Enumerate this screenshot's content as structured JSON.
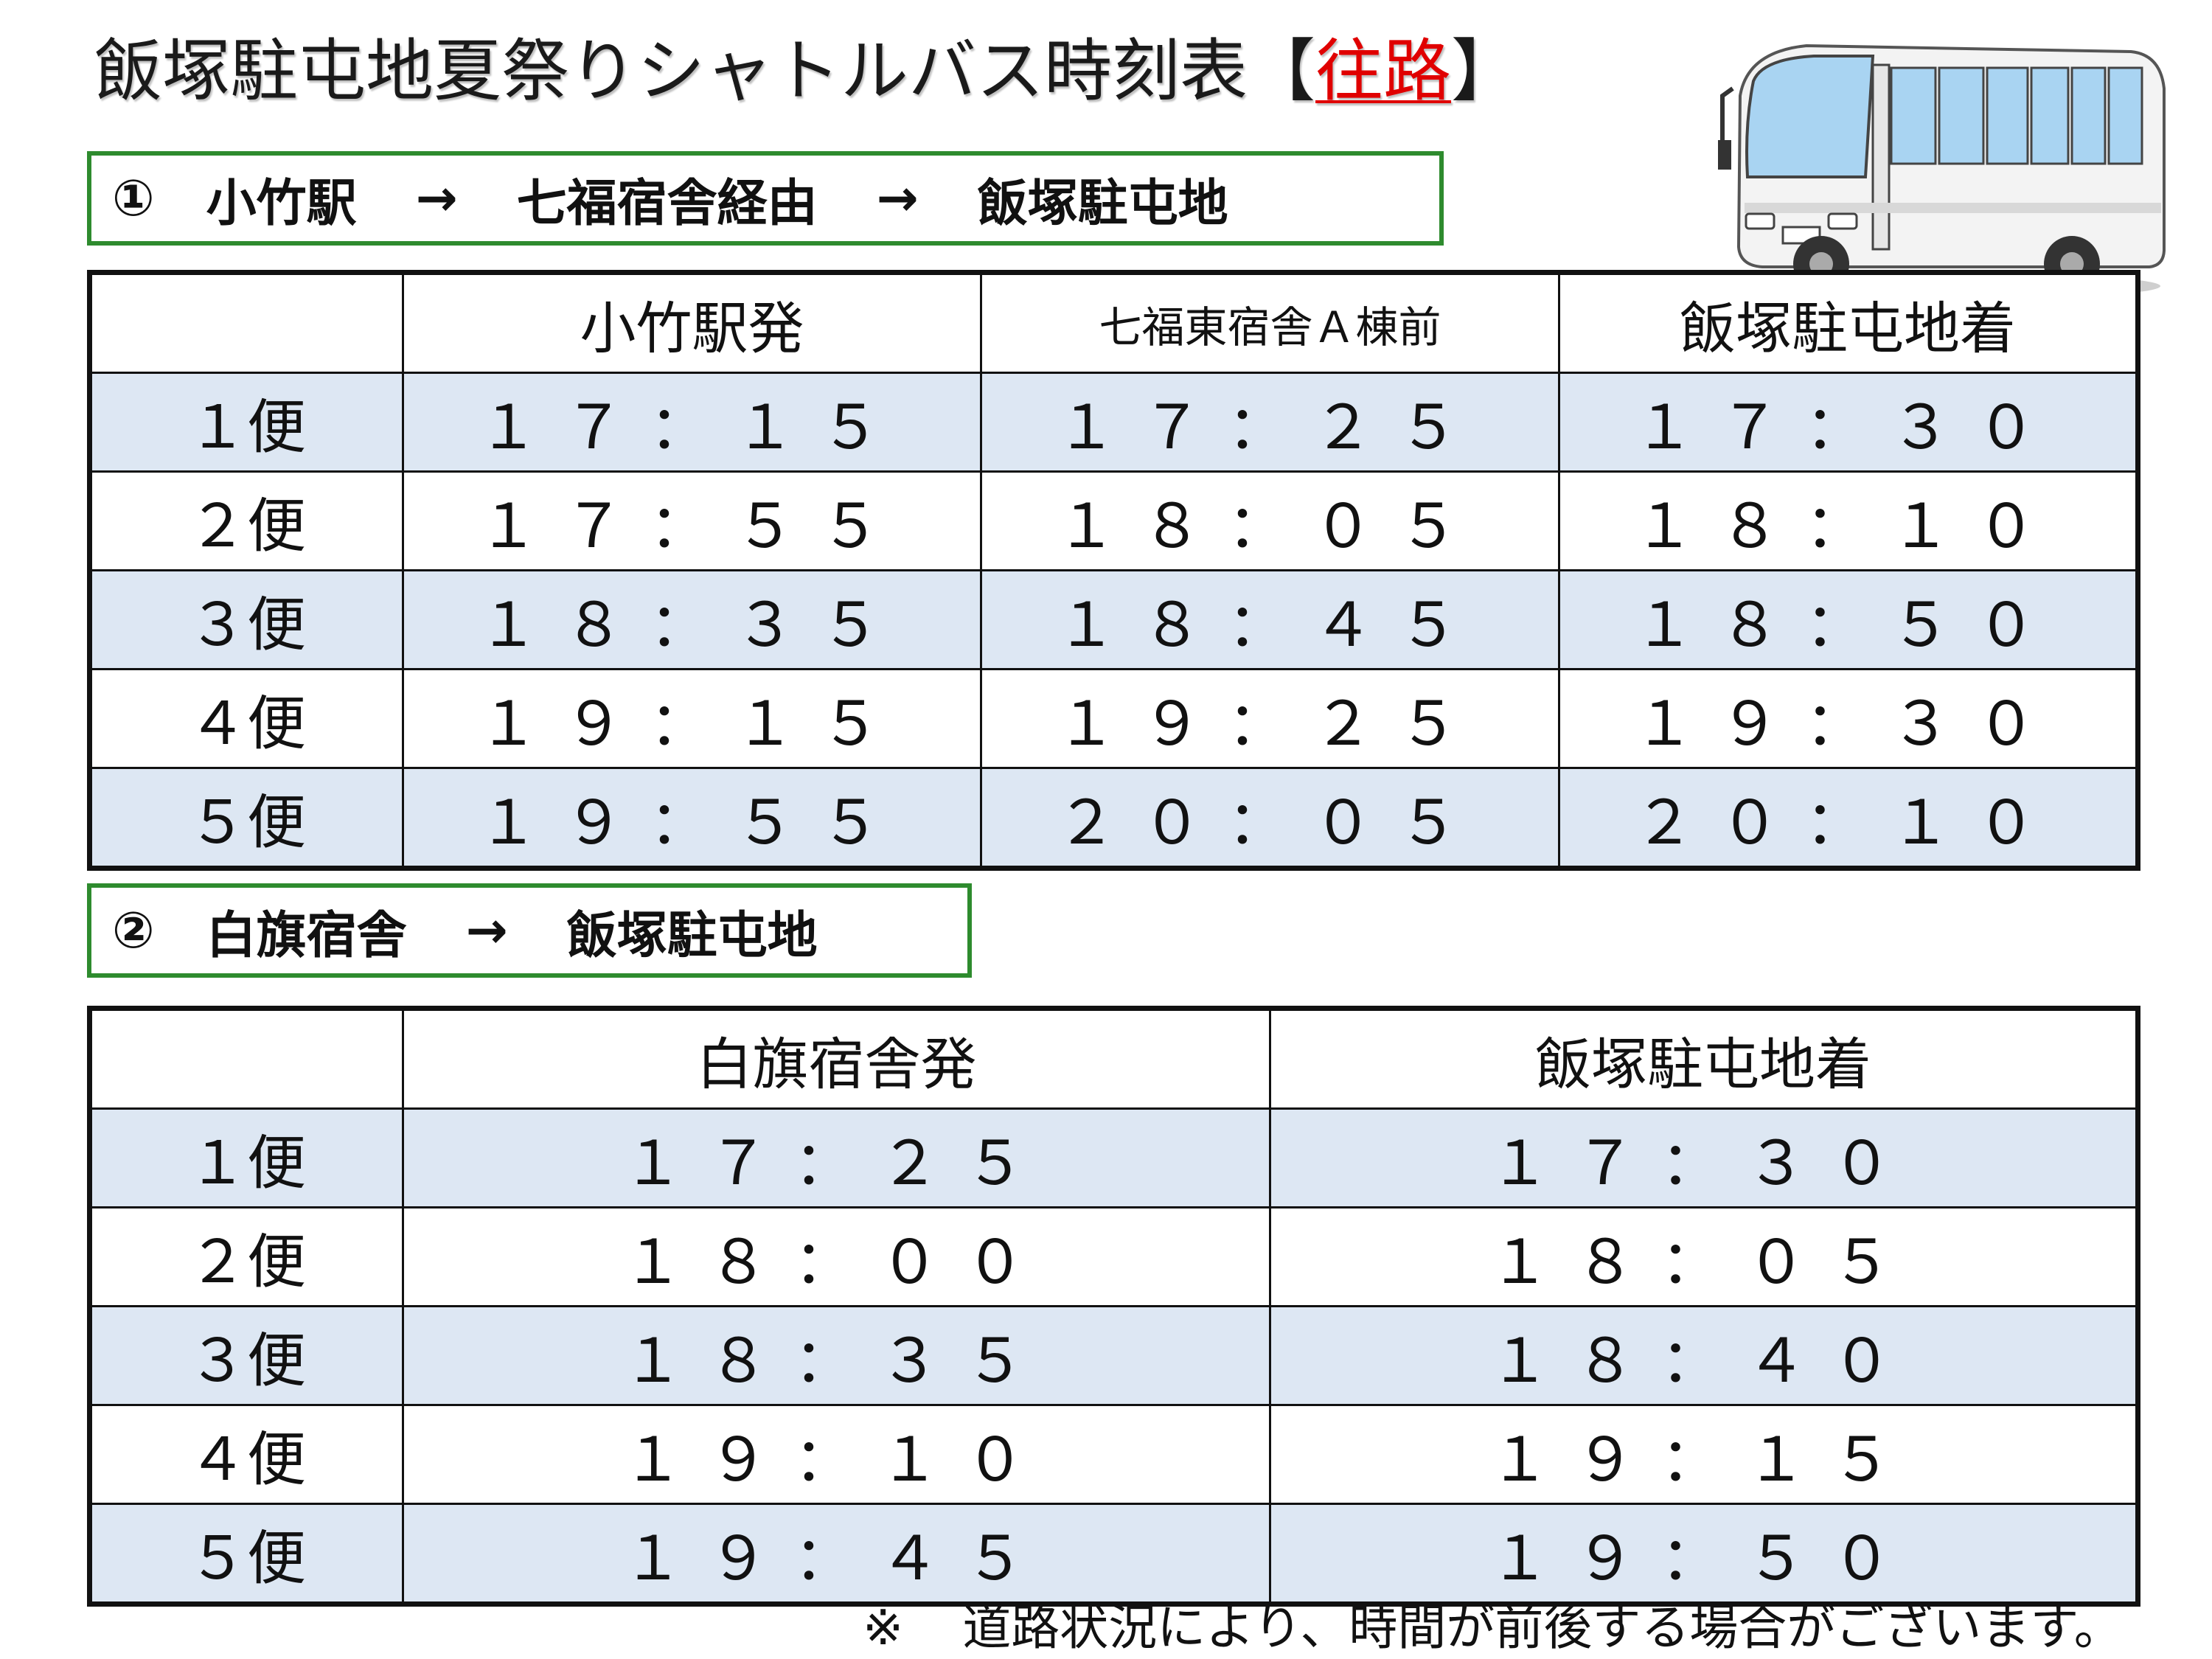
{
  "title": {
    "main": "飯塚駐屯地夏祭りシャトルバス時刻表",
    "bracket_open": "【",
    "accent": "往路",
    "bracket_close": "】",
    "accent_color": "#e00000"
  },
  "route1": {
    "number": "①",
    "from": "小竹駅",
    "arrow": "→",
    "via": "七福宿舎経由",
    "to": "飯塚駐屯地",
    "border_color": "#2e8b2e"
  },
  "table1": {
    "headers": [
      "小竹駅発",
      "七福東宿舎Ａ棟前",
      "飯塚駐屯地着"
    ],
    "rows": [
      {
        "trip": "１便",
        "times": [
          "１７：１５",
          "１７：２５",
          "１７：３０"
        ]
      },
      {
        "trip": "２便",
        "times": [
          "１７：５５",
          "１８：０５",
          "１８：１０"
        ]
      },
      {
        "trip": "３便",
        "times": [
          "１８：３５",
          "１８：４５",
          "１８：５０"
        ]
      },
      {
        "trip": "４便",
        "times": [
          "１９：１５",
          "１９：２５",
          "１９：３０"
        ]
      },
      {
        "trip": "５便",
        "times": [
          "１９：５５",
          "２０：０５",
          "２０：１０"
        ]
      }
    ]
  },
  "route2": {
    "number": "②",
    "from": "白旗宿舎",
    "arrow": "→",
    "to": "飯塚駐屯地"
  },
  "table2": {
    "headers": [
      "白旗宿舎発",
      "飯塚駐屯地着"
    ],
    "rows": [
      {
        "trip": "１便",
        "times": [
          "１７：２５",
          "１７：３０"
        ]
      },
      {
        "trip": "２便",
        "times": [
          "１８：００",
          "１８：０５"
        ]
      },
      {
        "trip": "３便",
        "times": [
          "１８：３５",
          "１８：４０"
        ]
      },
      {
        "trip": "４便",
        "times": [
          "１９：１０",
          "１９：１５"
        ]
      },
      {
        "trip": "５便",
        "times": [
          "１９：４５",
          "１９：５０"
        ]
      }
    ]
  },
  "note": {
    "mark": "※",
    "text": "道路状況により、時間が前後する場合がございます。"
  },
  "colors": {
    "row_shade": "#dde7f3",
    "bus_window": "#a9d4f2"
  },
  "illustration": "bus-icon"
}
